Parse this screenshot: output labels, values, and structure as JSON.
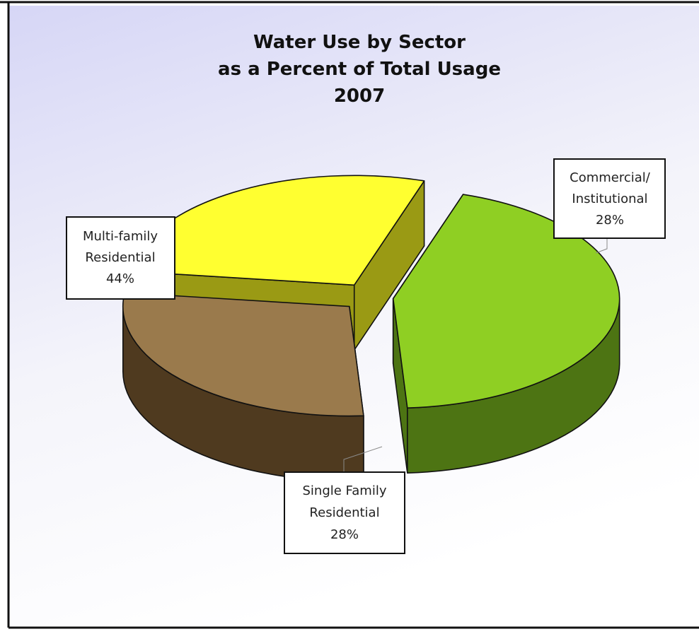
{
  "chart_data": {
    "type": "pie",
    "title": [
      "Water Use by Sector",
      "as a Percent of Total  Usage",
      "2007"
    ],
    "slices": [
      {
        "label_lines": [
          "Multi-family",
          "Residential",
          "44%"
        ],
        "value": 44,
        "color": "#8fcf23",
        "side_color": "#4d7413"
      },
      {
        "label_lines": [
          "Single Family",
          "Residential",
          "28%"
        ],
        "value": 28,
        "color": "#9a7a4c",
        "side_color": "#4f3a1f"
      },
      {
        "label_lines": [
          "Commercial/",
          "Institutional",
          "28%"
        ],
        "value": 28,
        "color": "#ffff30",
        "side_color": "#9a9a14"
      }
    ],
    "exploded": true,
    "three_d": true,
    "legend": "none",
    "background": {
      "top": "#d6d6f6",
      "middle": "#f4f4fa",
      "bottom": "#ffffff"
    }
  }
}
